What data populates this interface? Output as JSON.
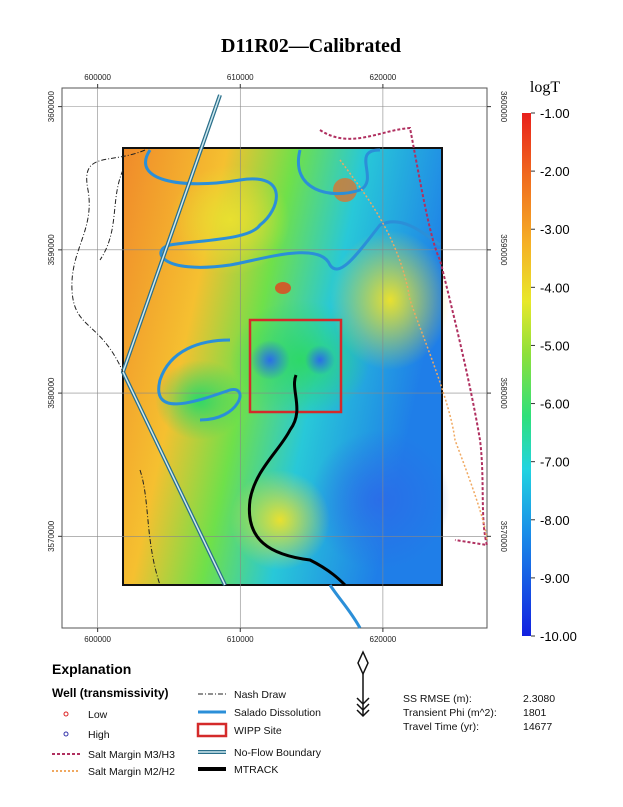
{
  "title": "D11R02—Calibrated",
  "map": {
    "xlim": [
      597500,
      627300
    ],
    "ylim": [
      3563600,
      3601300
    ],
    "xticks": [
      600000,
      610000,
      620000
    ],
    "yticks": [
      3600000,
      3590000,
      3580000,
      3570000
    ]
  },
  "colorbar": {
    "label": "logT",
    "lim": [
      -10,
      -1
    ],
    "ticks": [
      {
        "value": -1,
        "label": "-1.00"
      },
      {
        "value": -2,
        "label": "-2.00"
      },
      {
        "value": -3,
        "label": "-3.00"
      },
      {
        "value": -4,
        "label": "-4.00"
      },
      {
        "value": -5,
        "label": "-5.00"
      },
      {
        "value": -6,
        "label": "-6.00"
      },
      {
        "value": -7,
        "label": "-7.00"
      },
      {
        "value": -8,
        "label": "-8.00"
      },
      {
        "value": -9,
        "label": "-9.00"
      },
      {
        "value": -10,
        "label": "-10.00"
      }
    ]
  },
  "explanation": {
    "title": "Explanation",
    "wells_title": "Well (transmissivity)",
    "items": [
      "Low",
      "High",
      "Salt Margin M3/H3",
      "Salt Margin M2/H2",
      "Nash Draw",
      "Salado Dissolution",
      "WIPP Site",
      "No-Flow Boundary",
      "MTRACK"
    ]
  },
  "stats": [
    {
      "label": "SS RMSE (m):",
      "value": "2.3080"
    },
    {
      "label": "Transient Phi (m^2):",
      "value": "1801"
    },
    {
      "label": "Travel Time (yr):",
      "value": "14677"
    }
  ]
}
